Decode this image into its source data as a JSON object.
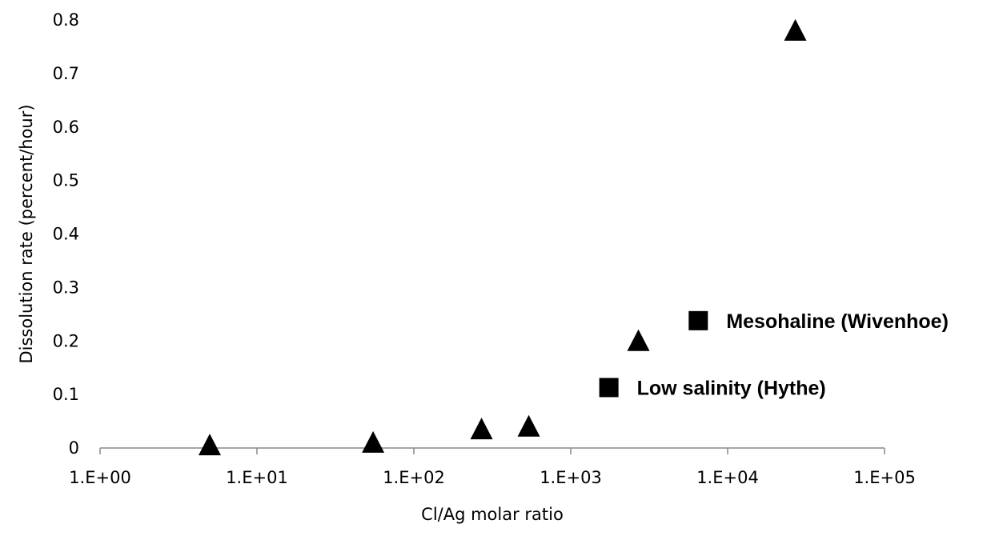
{
  "chart_data": {
    "type": "scatter",
    "xlabel": "Cl/Ag molar ratio",
    "ylabel": "Dissolution rate (percent/hour)",
    "x_scale": "log",
    "xlim": [
      1,
      100000
    ],
    "ylim": [
      0,
      0.8
    ],
    "x_ticks": [
      1,
      10,
      100,
      1000,
      10000,
      100000
    ],
    "x_tick_labels": [
      "1.E+00",
      "1.E+01",
      "1.E+02",
      "1.E+03",
      "1.E+04",
      "1.E+05"
    ],
    "y_ticks": [
      0,
      0.1,
      0.2,
      0.3,
      0.4,
      0.5,
      0.6,
      0.7,
      0.8
    ],
    "y_tick_labels": [
      "0",
      "0.1",
      "0.2",
      "0.3",
      "0.4",
      "0.5",
      "0.6",
      "0.7",
      "0.8"
    ],
    "grid": false,
    "marker_color": "#000000",
    "series": [
      {
        "marker": "triangle",
        "points": [
          {
            "x": 5,
            "y": 0.005
          },
          {
            "x": 55,
            "y": 0.01
          },
          {
            "x": 270,
            "y": 0.035
          },
          {
            "x": 540,
            "y": 0.04
          },
          {
            "x": 2700,
            "y": 0.2
          },
          {
            "x": 27000,
            "y": 0.78
          }
        ]
      },
      {
        "marker": "square",
        "points": [
          {
            "x": 1750,
            "y": 0.113,
            "label": "Low salinity (Hythe)"
          },
          {
            "x": 6500,
            "y": 0.238,
            "label": "Mesohaline (Wivenhoe)"
          }
        ]
      }
    ]
  }
}
